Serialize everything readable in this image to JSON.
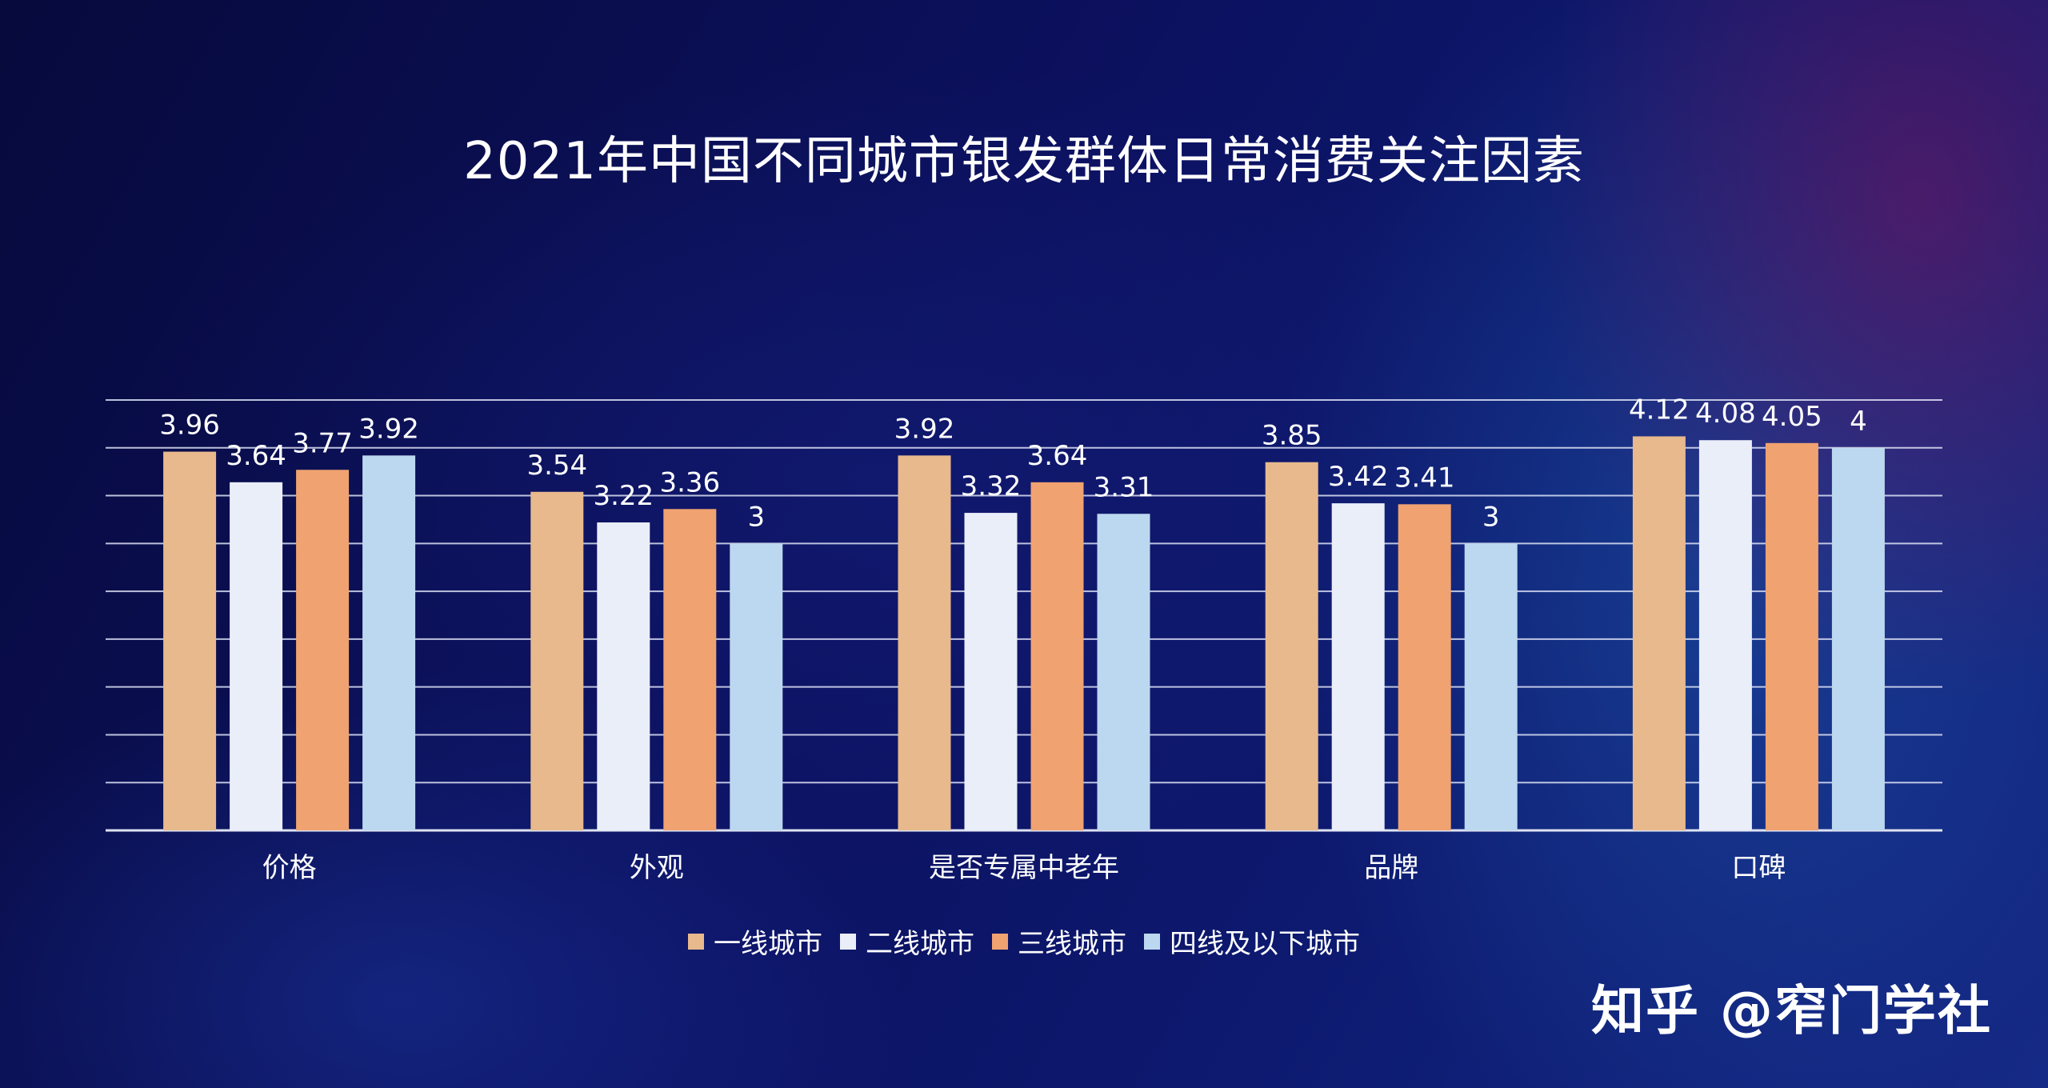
{
  "title": "2021年中国不同城市银发群体日常消费关注因素",
  "watermark": "知乎 @窄门学社",
  "chart_data": {
    "type": "bar",
    "title": "2021年中国不同城市银发群体日常消费关注因素",
    "categories": [
      "价格",
      "外观",
      "是否专属中老年",
      "品牌",
      "口碑"
    ],
    "series": [
      {
        "name": "一线城市",
        "color": "#e7b98c",
        "values": [
          3.96,
          3.54,
          3.92,
          3.85,
          4.12
        ]
      },
      {
        "name": "二线城市",
        "color": "#eaeef9",
        "values": [
          3.64,
          3.22,
          3.32,
          3.42,
          4.08
        ]
      },
      {
        "name": "三线城市",
        "color": "#f0a271",
        "values": [
          3.77,
          3.36,
          3.64,
          3.41,
          4.05
        ]
      },
      {
        "name": "四线及以下城市",
        "color": "#bcd8f0",
        "values": [
          3.92,
          3,
          3.31,
          3,
          4
        ]
      }
    ],
    "ylim": [
      0,
      4.5
    ],
    "grid": true,
    "legend_position": "bottom"
  }
}
